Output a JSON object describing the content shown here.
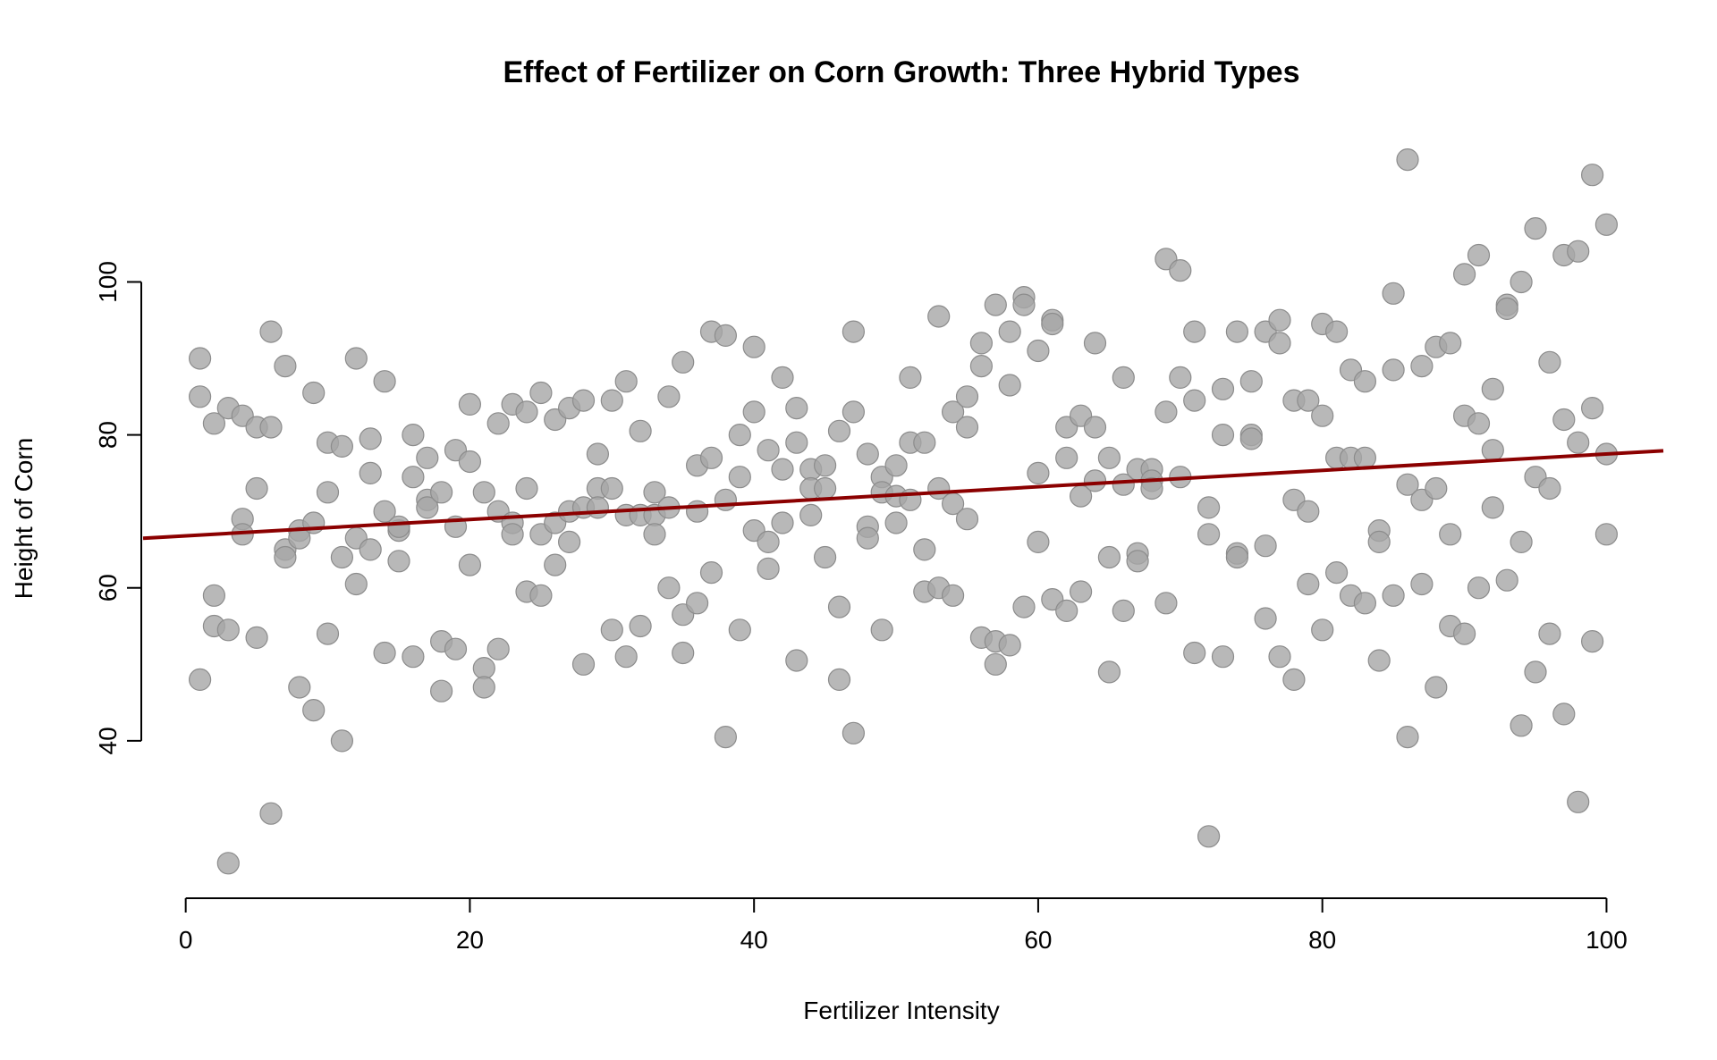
{
  "chart_data": {
    "type": "scatter",
    "title": "Effect of Fertilizer on Corn Growth: Three Hybrid Types",
    "xlabel": "Fertilizer Intensity",
    "ylabel": "Height of Corn",
    "xlim": [
      -3,
      104
    ],
    "ylim": [
      20,
      117
    ],
    "x_ticks": [
      0,
      20,
      40,
      60,
      80,
      100
    ],
    "y_ticks": [
      40,
      60,
      80,
      100
    ],
    "grid": false,
    "legend": "none",
    "point_color": "#a6a6a6",
    "trend_color": "#8b0000",
    "trend_line": {
      "intercept": 66.8,
      "slope": 0.107
    },
    "points": [
      [
        1,
        90
      ],
      [
        1,
        85
      ],
      [
        1,
        48
      ],
      [
        2,
        81.5
      ],
      [
        2,
        59
      ],
      [
        2,
        55
      ],
      [
        3,
        83.5
      ],
      [
        3,
        54.5
      ],
      [
        3,
        24
      ],
      [
        4,
        82.5
      ],
      [
        4,
        69
      ],
      [
        4,
        67
      ],
      [
        5,
        81
      ],
      [
        5,
        73
      ],
      [
        5,
        53.5
      ],
      [
        6,
        93.5
      ],
      [
        6,
        81
      ],
      [
        6,
        30.5
      ],
      [
        7,
        89
      ],
      [
        7,
        65
      ],
      [
        7,
        64
      ],
      [
        8,
        67.5
      ],
      [
        8,
        66.5
      ],
      [
        8,
        47
      ],
      [
        9,
        85.5
      ],
      [
        9,
        68.5
      ],
      [
        9,
        44
      ],
      [
        10,
        79
      ],
      [
        10,
        72.5
      ],
      [
        10,
        54
      ],
      [
        11,
        78.5
      ],
      [
        11,
        64
      ],
      [
        11,
        40
      ],
      [
        12,
        90
      ],
      [
        12,
        66.5
      ],
      [
        12,
        60.5
      ],
      [
        13,
        79.5
      ],
      [
        13,
        75
      ],
      [
        13,
        65
      ],
      [
        14,
        87
      ],
      [
        14,
        70
      ],
      [
        14,
        51.5
      ],
      [
        15,
        67.5
      ],
      [
        15,
        68
      ],
      [
        15,
        63.5
      ],
      [
        16,
        80
      ],
      [
        16,
        74.5
      ],
      [
        16,
        51
      ],
      [
        17,
        77
      ],
      [
        17,
        71.5
      ],
      [
        17,
        70.5
      ],
      [
        18,
        72.5
      ],
      [
        18,
        53
      ],
      [
        18,
        46.5
      ],
      [
        19,
        78
      ],
      [
        19,
        68
      ],
      [
        19,
        52
      ],
      [
        20,
        84
      ],
      [
        20,
        76.5
      ],
      [
        20,
        63
      ],
      [
        21,
        72.5
      ],
      [
        21,
        49.5
      ],
      [
        21,
        47
      ],
      [
        22,
        81.5
      ],
      [
        22,
        70
      ],
      [
        22,
        52
      ],
      [
        23,
        84
      ],
      [
        23,
        68.5
      ],
      [
        23,
        67
      ],
      [
        24,
        83
      ],
      [
        24,
        73
      ],
      [
        24,
        59.5
      ],
      [
        25,
        85.5
      ],
      [
        25,
        67
      ],
      [
        25,
        59
      ],
      [
        26,
        82
      ],
      [
        26,
        68.5
      ],
      [
        26,
        63
      ],
      [
        27,
        83.5
      ],
      [
        27,
        70
      ],
      [
        27,
        66
      ],
      [
        28,
        84.5
      ],
      [
        28,
        70.5
      ],
      [
        28,
        50
      ],
      [
        29,
        77.5
      ],
      [
        29,
        73
      ],
      [
        29,
        70.5
      ],
      [
        30,
        84.5
      ],
      [
        30,
        73
      ],
      [
        30,
        54.5
      ],
      [
        31,
        87
      ],
      [
        31,
        69.5
      ],
      [
        31,
        51
      ],
      [
        32,
        80.5
      ],
      [
        32,
        69.5
      ],
      [
        32,
        55
      ],
      [
        33,
        72.5
      ],
      [
        33,
        69.5
      ],
      [
        33,
        67
      ],
      [
        34,
        85
      ],
      [
        34,
        70.5
      ],
      [
        34,
        60
      ],
      [
        35,
        89.5
      ],
      [
        35,
        56.5
      ],
      [
        35,
        51.5
      ],
      [
        36,
        76
      ],
      [
        36,
        70
      ],
      [
        36,
        58
      ],
      [
        37,
        93.5
      ],
      [
        37,
        77
      ],
      [
        37,
        62
      ],
      [
        38,
        93
      ],
      [
        38,
        71.5
      ],
      [
        38,
        40.5
      ],
      [
        39,
        80
      ],
      [
        39,
        74.5
      ],
      [
        39,
        54.5
      ],
      [
        40,
        91.5
      ],
      [
        40,
        83
      ],
      [
        40,
        67.5
      ],
      [
        41,
        78
      ],
      [
        41,
        66
      ],
      [
        41,
        62.5
      ],
      [
        42,
        87.5
      ],
      [
        42,
        75.5
      ],
      [
        42,
        68.5
      ],
      [
        43,
        83.5
      ],
      [
        43,
        79
      ],
      [
        43,
        50.5
      ],
      [
        44,
        75.5
      ],
      [
        44,
        73
      ],
      [
        44,
        69.5
      ],
      [
        45,
        76
      ],
      [
        45,
        73
      ],
      [
        45,
        64
      ],
      [
        46,
        80.5
      ],
      [
        46,
        57.5
      ],
      [
        46,
        48
      ],
      [
        47,
        93.5
      ],
      [
        47,
        83
      ],
      [
        47,
        41
      ],
      [
        48,
        77.5
      ],
      [
        48,
        68
      ],
      [
        48,
        66.5
      ],
      [
        49,
        74.5
      ],
      [
        49,
        72.5
      ],
      [
        49,
        54.5
      ],
      [
        50,
        76
      ],
      [
        50,
        72
      ],
      [
        50,
        68.5
      ],
      [
        51,
        87.5
      ],
      [
        51,
        79
      ],
      [
        51,
        71.5
      ],
      [
        52,
        79
      ],
      [
        52,
        65
      ],
      [
        52,
        59.5
      ],
      [
        53,
        95.5
      ],
      [
        53,
        73
      ],
      [
        53,
        60
      ],
      [
        54,
        83
      ],
      [
        54,
        71
      ],
      [
        54,
        59
      ],
      [
        55,
        85
      ],
      [
        55,
        81
      ],
      [
        55,
        69
      ],
      [
        56,
        92
      ],
      [
        56,
        89
      ],
      [
        56,
        53.5
      ],
      [
        57,
        97
      ],
      [
        57,
        53
      ],
      [
        57,
        50
      ],
      [
        58,
        93.5
      ],
      [
        58,
        86.5
      ],
      [
        58,
        52.5
      ],
      [
        59,
        98
      ],
      [
        59,
        97
      ],
      [
        59,
        57.5
      ],
      [
        60,
        91
      ],
      [
        60,
        75
      ],
      [
        60,
        66
      ],
      [
        61,
        95
      ],
      [
        61,
        94.5
      ],
      [
        61,
        58.5
      ],
      [
        62,
        81
      ],
      [
        62,
        77
      ],
      [
        62,
        57
      ],
      [
        63,
        82.5
      ],
      [
        63,
        72
      ],
      [
        63,
        59.5
      ],
      [
        64,
        92
      ],
      [
        64,
        81
      ],
      [
        64,
        74
      ],
      [
        65,
        77
      ],
      [
        65,
        64
      ],
      [
        65,
        49
      ],
      [
        66,
        87.5
      ],
      [
        66,
        73.5
      ],
      [
        66,
        57
      ],
      [
        67,
        75.5
      ],
      [
        67,
        64.5
      ],
      [
        67,
        63.5
      ],
      [
        68,
        75.5
      ],
      [
        68,
        74
      ],
      [
        68,
        73
      ],
      [
        69,
        103
      ],
      [
        69,
        83
      ],
      [
        69,
        58
      ],
      [
        70,
        101.5
      ],
      [
        70,
        87.5
      ],
      [
        70,
        74.5
      ],
      [
        71,
        93.5
      ],
      [
        71,
        84.5
      ],
      [
        71,
        51.5
      ],
      [
        72,
        70.5
      ],
      [
        72,
        67
      ],
      [
        72,
        27.5
      ],
      [
        73,
        86
      ],
      [
        73,
        80
      ],
      [
        73,
        51
      ],
      [
        74,
        93.5
      ],
      [
        74,
        64.5
      ],
      [
        74,
        64
      ],
      [
        75,
        87
      ],
      [
        75,
        80
      ],
      [
        75,
        79.5
      ],
      [
        76,
        93.5
      ],
      [
        76,
        65.5
      ],
      [
        76,
        56
      ],
      [
        77,
        95
      ],
      [
        77,
        92
      ],
      [
        77,
        51
      ],
      [
        78,
        84.5
      ],
      [
        78,
        71.5
      ],
      [
        78,
        48
      ],
      [
        79,
        84.5
      ],
      [
        79,
        70
      ],
      [
        79,
        60.5
      ],
      [
        80,
        94.5
      ],
      [
        80,
        82.5
      ],
      [
        80,
        54.5
      ],
      [
        81,
        93.5
      ],
      [
        81,
        77
      ],
      [
        81,
        62
      ],
      [
        82,
        88.5
      ],
      [
        82,
        77
      ],
      [
        82,
        59
      ],
      [
        83,
        87
      ],
      [
        83,
        77
      ],
      [
        83,
        58
      ],
      [
        84,
        67.5
      ],
      [
        84,
        66
      ],
      [
        84,
        50.5
      ],
      [
        85,
        98.5
      ],
      [
        85,
        88.5
      ],
      [
        85,
        59
      ],
      [
        86,
        116
      ],
      [
        86,
        73.5
      ],
      [
        86,
        40.5
      ],
      [
        87,
        89
      ],
      [
        87,
        71.5
      ],
      [
        87,
        60.5
      ],
      [
        88,
        91.5
      ],
      [
        88,
        73
      ],
      [
        88,
        47
      ],
      [
        89,
        92
      ],
      [
        89,
        67
      ],
      [
        89,
        55
      ],
      [
        90,
        101
      ],
      [
        90,
        82.5
      ],
      [
        90,
        54
      ],
      [
        91,
        103.5
      ],
      [
        91,
        81.5
      ],
      [
        91,
        60
      ],
      [
        92,
        86
      ],
      [
        92,
        78
      ],
      [
        92,
        70.5
      ],
      [
        93,
        97
      ],
      [
        93,
        96.5
      ],
      [
        93,
        61
      ],
      [
        94,
        100
      ],
      [
        94,
        66
      ],
      [
        94,
        42
      ],
      [
        95,
        107
      ],
      [
        95,
        74.5
      ],
      [
        95,
        49
      ],
      [
        96,
        89.5
      ],
      [
        96,
        73
      ],
      [
        96,
        54
      ],
      [
        97,
        103.5
      ],
      [
        97,
        82
      ],
      [
        97,
        43.5
      ],
      [
        98,
        104
      ],
      [
        98,
        79
      ],
      [
        98,
        32
      ],
      [
        99,
        114
      ],
      [
        99,
        83.5
      ],
      [
        99,
        53
      ],
      [
        100,
        107.5
      ],
      [
        100,
        77.5
      ],
      [
        100,
        67
      ]
    ]
  }
}
